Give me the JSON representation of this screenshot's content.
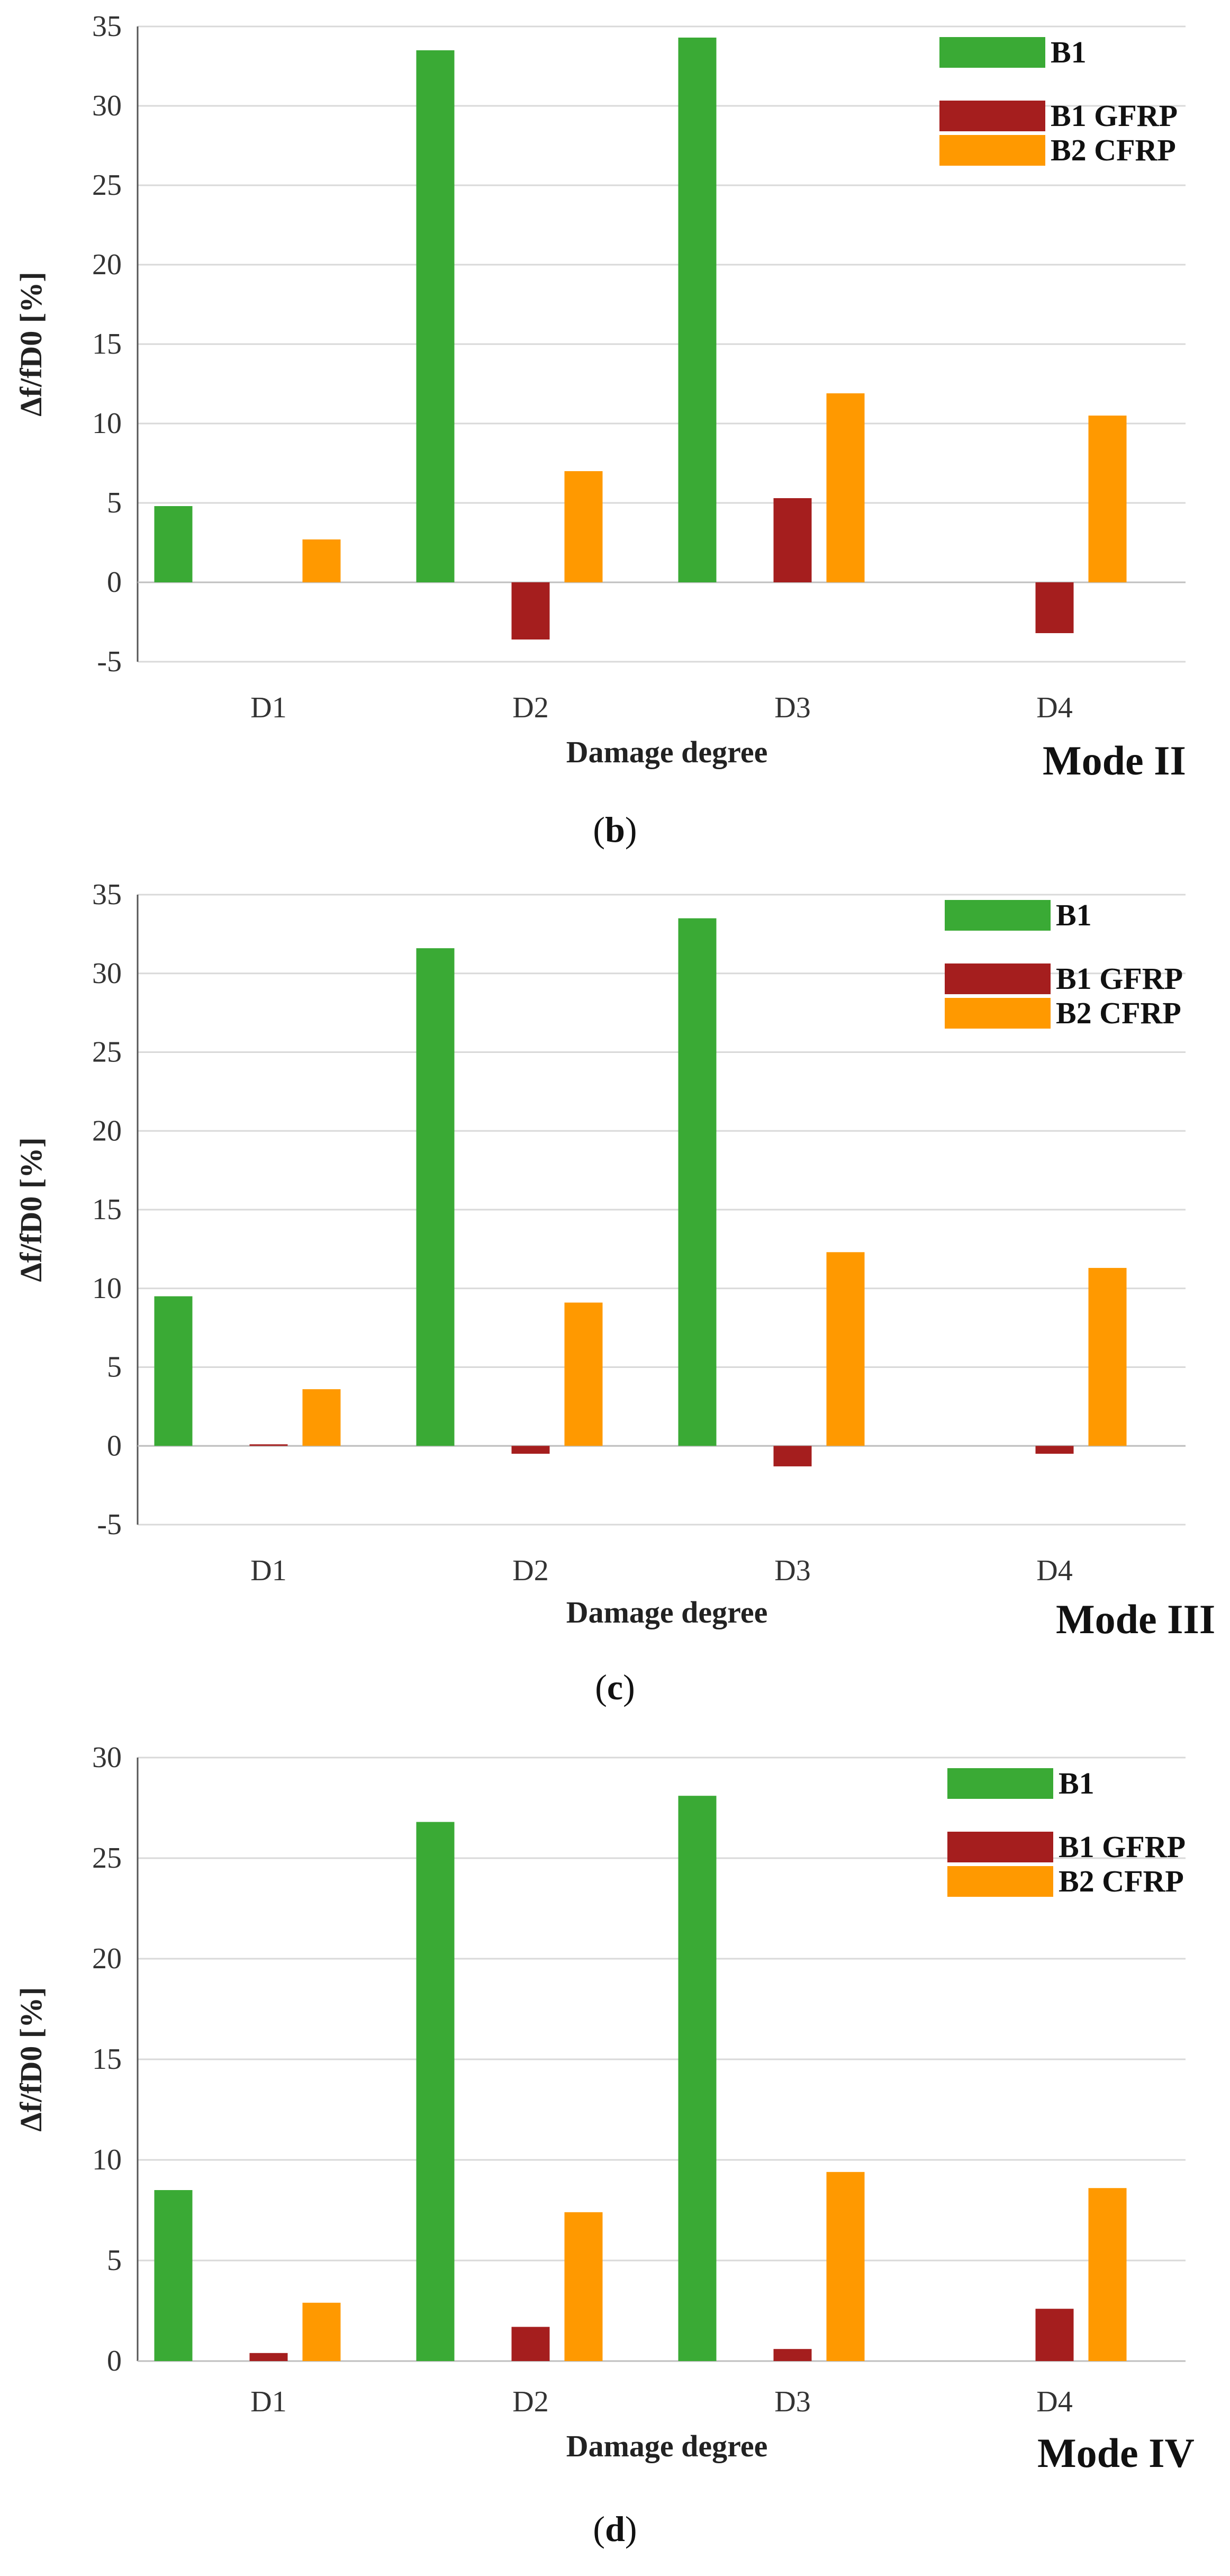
{
  "colors": {
    "b1": "#3aaa35",
    "b1_gfrp": "#a51e1e",
    "b2_cfrp": "#ff9900",
    "grid": "#d9d9d9"
  },
  "panels": [
    {
      "caption_letter": "b"
    },
    {
      "caption_letter": "c"
    },
    {
      "caption_letter": "d"
    }
  ],
  "chart_data": [
    {
      "type": "bar",
      "title": "",
      "annotation": "Mode II",
      "xlabel": "Damage degree",
      "ylabel": "Δf/fD0 [%]",
      "ylim": [
        -5,
        35
      ],
      "yticks": [
        -5,
        0,
        5,
        10,
        15,
        20,
        25,
        30,
        35
      ],
      "grid": true,
      "legend": "top-right",
      "categories": [
        "D1",
        "D2",
        "D3",
        "D4"
      ],
      "series": [
        {
          "name": "B1",
          "color": "#3aaa35",
          "values": [
            4.8,
            33.5,
            34.3,
            0
          ]
        },
        {
          "name": "B1 GFRP",
          "color": "#a51e1e",
          "values": [
            0,
            -3.6,
            5.3,
            -3.2
          ]
        },
        {
          "name": "B2 CFRP",
          "color": "#ff9900",
          "values": [
            2.7,
            7.0,
            11.9,
            10.5
          ]
        }
      ]
    },
    {
      "type": "bar",
      "title": "",
      "annotation": "Mode III",
      "xlabel": "Damage degree",
      "ylabel": "Δf/fD0 [%]",
      "ylim": [
        -5,
        35
      ],
      "yticks": [
        -5,
        0,
        5,
        10,
        15,
        20,
        25,
        30,
        35
      ],
      "grid": true,
      "legend": "top-right",
      "categories": [
        "D1",
        "D2",
        "D3",
        "D4"
      ],
      "series": [
        {
          "name": "B1",
          "color": "#3aaa35",
          "values": [
            9.5,
            31.6,
            33.5,
            0
          ]
        },
        {
          "name": "B1 GFRP",
          "color": "#a51e1e",
          "values": [
            0.1,
            -0.5,
            -1.3,
            -0.5
          ]
        },
        {
          "name": "B2 CFRP",
          "color": "#ff9900",
          "values": [
            3.6,
            9.1,
            12.3,
            11.3
          ]
        }
      ]
    },
    {
      "type": "bar",
      "title": "",
      "annotation": "Mode IV",
      "xlabel": "Damage degree",
      "ylabel": "Δf/fD0 [%]",
      "ylim": [
        0,
        30
      ],
      "yticks": [
        0,
        5,
        10,
        15,
        20,
        25,
        30
      ],
      "grid": true,
      "legend": "top-right",
      "categories": [
        "D1",
        "D2",
        "D3",
        "D4"
      ],
      "series": [
        {
          "name": "B1",
          "color": "#3aaa35",
          "values": [
            8.5,
            26.8,
            28.1,
            0
          ]
        },
        {
          "name": "B1 GFRP",
          "color": "#a51e1e",
          "values": [
            0.4,
            1.7,
            0.6,
            2.6
          ]
        },
        {
          "name": "B2 CFRP",
          "color": "#ff9900",
          "values": [
            2.9,
            7.4,
            9.4,
            8.6
          ]
        }
      ]
    }
  ]
}
